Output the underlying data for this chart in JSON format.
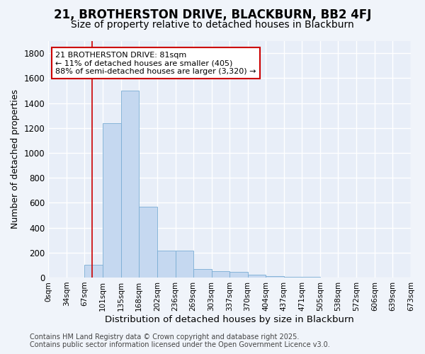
{
  "title": "21, BROTHERSTON DRIVE, BLACKBURN, BB2 4FJ",
  "subtitle": "Size of property relative to detached houses in Blackburn",
  "xlabel": "Distribution of detached houses by size in Blackburn",
  "ylabel": "Number of detached properties",
  "footer_line1": "Contains HM Land Registry data © Crown copyright and database right 2025.",
  "footer_line2": "Contains public sector information licensed under the Open Government Licence v3.0.",
  "bar_edges": [
    0,
    34,
    67,
    101,
    135,
    168,
    202,
    236,
    269,
    303,
    337,
    370,
    404,
    437,
    471,
    505,
    538,
    572,
    606,
    639,
    673
  ],
  "bar_heights": [
    0,
    0,
    100,
    1240,
    1500,
    570,
    215,
    215,
    70,
    50,
    45,
    25,
    12,
    5,
    3,
    2,
    1,
    0,
    0,
    0
  ],
  "bar_color": "#c5d8f0",
  "bar_edge_color": "#7aadd4",
  "property_size": 81,
  "red_line_color": "#cc0000",
  "annotation_line1": "21 BROTHERSTON DRIVE: 81sqm",
  "annotation_line2": "← 11% of detached houses are smaller (405)",
  "annotation_line3": "88% of semi-detached houses are larger (3,320) →",
  "annotation_box_color": "#ffffff",
  "annotation_border_color": "#cc0000",
  "ylim": [
    0,
    1900
  ],
  "yticks": [
    0,
    200,
    400,
    600,
    800,
    1000,
    1200,
    1400,
    1600,
    1800
  ],
  "bg_color": "#f0f4fa",
  "plot_bg_color": "#e8eef8",
  "grid_color": "#ffffff",
  "title_fontsize": 12,
  "subtitle_fontsize": 10,
  "annotation_fontsize": 8,
  "tick_label_fontsize": 7.5,
  "ylabel_fontsize": 9,
  "xlabel_fontsize": 9.5,
  "footer_fontsize": 7
}
